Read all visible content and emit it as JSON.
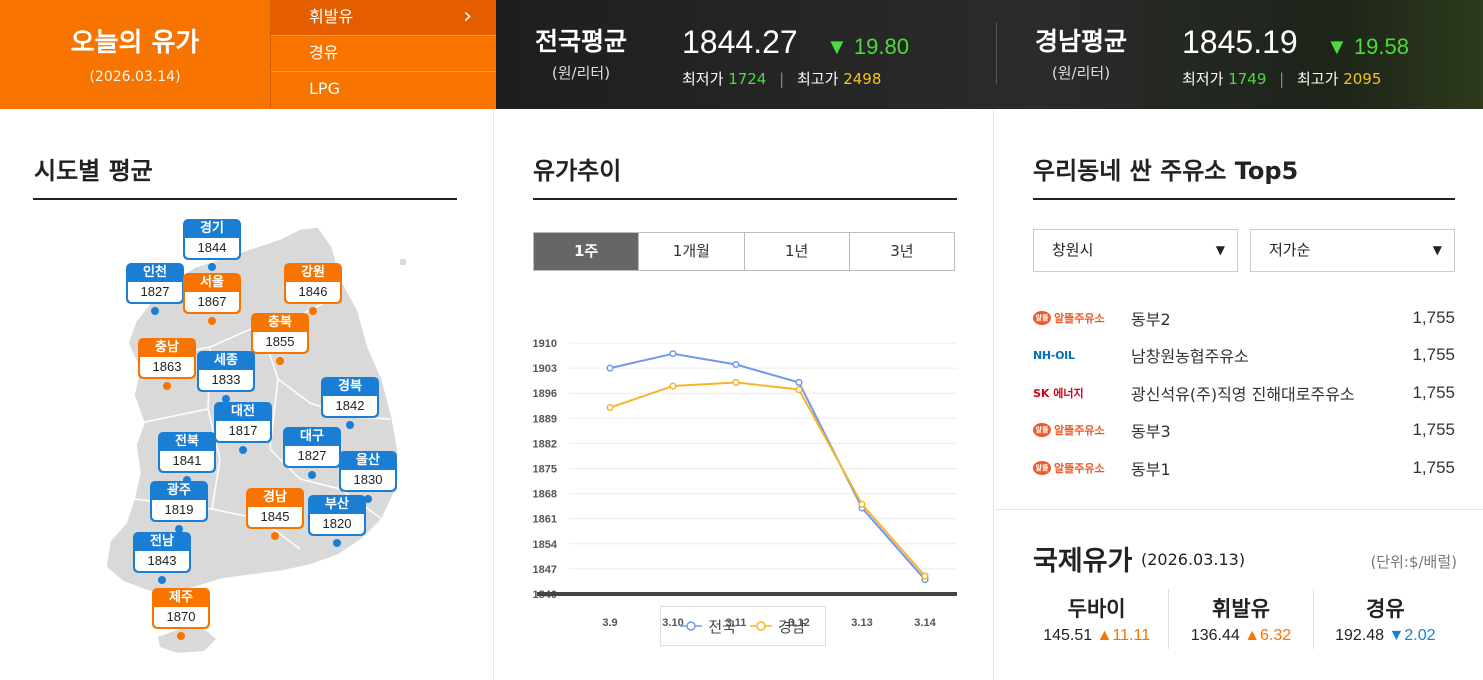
{
  "header": {
    "title": "오늘의 유가",
    "date": "(2026.03.14)",
    "fuel_menu": [
      {
        "label": "휘발유",
        "active": true
      },
      {
        "label": "경유",
        "active": false
      },
      {
        "label": "LPG",
        "active": false
      }
    ],
    "chevron_icon": "chevron-right-icon",
    "national": {
      "name": "전국평균",
      "unit": "(원/리터)",
      "avg": "1844.27",
      "change": "▼ 19.80",
      "min_label": "최저가",
      "min": "1724",
      "max_label": "최고가",
      "max": "2498"
    },
    "gyeongnam": {
      "name": "경남평균",
      "unit": "(원/리터)",
      "avg": "1845.19",
      "change": "▼ 19.58",
      "min_label": "최저가",
      "min": "1749",
      "max_label": "최고가",
      "max": "2095"
    },
    "colors": {
      "orange": "#f77400",
      "down_green": "#4cdb3a",
      "max_yellow": "#f6c516"
    }
  },
  "regions_section": {
    "title": "시도별 평균",
    "regions": [
      {
        "name": "경기",
        "value": "1844",
        "color": "blue"
      },
      {
        "name": "인천",
        "value": "1827",
        "color": "blue"
      },
      {
        "name": "서울",
        "value": "1867",
        "color": "orange"
      },
      {
        "name": "강원",
        "value": "1846",
        "color": "orange"
      },
      {
        "name": "충북",
        "value": "1855",
        "color": "orange"
      },
      {
        "name": "충남",
        "value": "1863",
        "color": "orange"
      },
      {
        "name": "세종",
        "value": "1833",
        "color": "blue"
      },
      {
        "name": "경북",
        "value": "1842",
        "color": "blue"
      },
      {
        "name": "대전",
        "value": "1817",
        "color": "blue"
      },
      {
        "name": "전북",
        "value": "1841",
        "color": "blue"
      },
      {
        "name": "대구",
        "value": "1827",
        "color": "blue"
      },
      {
        "name": "울산",
        "value": "1830",
        "color": "blue"
      },
      {
        "name": "광주",
        "value": "1819",
        "color": "blue"
      },
      {
        "name": "경남",
        "value": "1845",
        "color": "orange"
      },
      {
        "name": "부산",
        "value": "1820",
        "color": "blue"
      },
      {
        "name": "전남",
        "value": "1843",
        "color": "blue"
      },
      {
        "name": "제주",
        "value": "1870",
        "color": "orange"
      }
    ]
  },
  "trend_section": {
    "title": "유가추이",
    "tabs": [
      {
        "label": "1주",
        "active": true
      },
      {
        "label": "1개월",
        "active": false
      },
      {
        "label": "1년",
        "active": false
      },
      {
        "label": "3년",
        "active": false
      }
    ]
  },
  "chart_data": {
    "type": "line",
    "x": [
      "3.9",
      "3.10",
      "3.11",
      "3.12",
      "3.13",
      "3.14"
    ],
    "series": [
      {
        "name": "전국",
        "values": [
          1903,
          1907,
          1904,
          1899,
          1864,
          1844
        ],
        "color": "#6f98ee"
      },
      {
        "name": "경남",
        "values": [
          1892,
          1898,
          1899,
          1897,
          1865,
          1845
        ],
        "color": "#f8b425"
      }
    ],
    "yticks": [
      1840,
      1847,
      1854,
      1861,
      1868,
      1875,
      1882,
      1889,
      1896,
      1903,
      1910
    ],
    "ylim": [
      1840,
      1910
    ],
    "grid": true,
    "legend_position": "bottom"
  },
  "top5_section": {
    "title": "우리동네 싼 주유소 Top5",
    "city_select": "창원시",
    "sort_select": "저가순",
    "stations": [
      {
        "brand": "alddl",
        "brand_text": "알뜰주유소",
        "name": "동부2",
        "price": "1,755"
      },
      {
        "brand": "nh",
        "brand_text": "NH-OIL",
        "name": "남창원농협주유소",
        "price": "1,755"
      },
      {
        "brand": "sk",
        "brand_text": "SK 에너지",
        "name": "광신석유(주)직영 진해대로주유소",
        "price": "1,755"
      },
      {
        "brand": "alddl",
        "brand_text": "알뜰주유소",
        "name": "동부3",
        "price": "1,755"
      },
      {
        "brand": "alddl",
        "brand_text": "알뜰주유소",
        "name": "동부1",
        "price": "1,755"
      }
    ]
  },
  "intl_section": {
    "title": "국제유가",
    "date": "(2026.03.13)",
    "unit": "(단위:$/배럴)",
    "items": [
      {
        "name": "두바이",
        "price": "145.51",
        "change": "▲11.11",
        "dir": "up"
      },
      {
        "name": "휘발유",
        "price": "136.44",
        "change": "▲6.32",
        "dir": "up"
      },
      {
        "name": "경유",
        "price": "192.48",
        "change": "▼2.02",
        "dir": "down"
      }
    ]
  }
}
